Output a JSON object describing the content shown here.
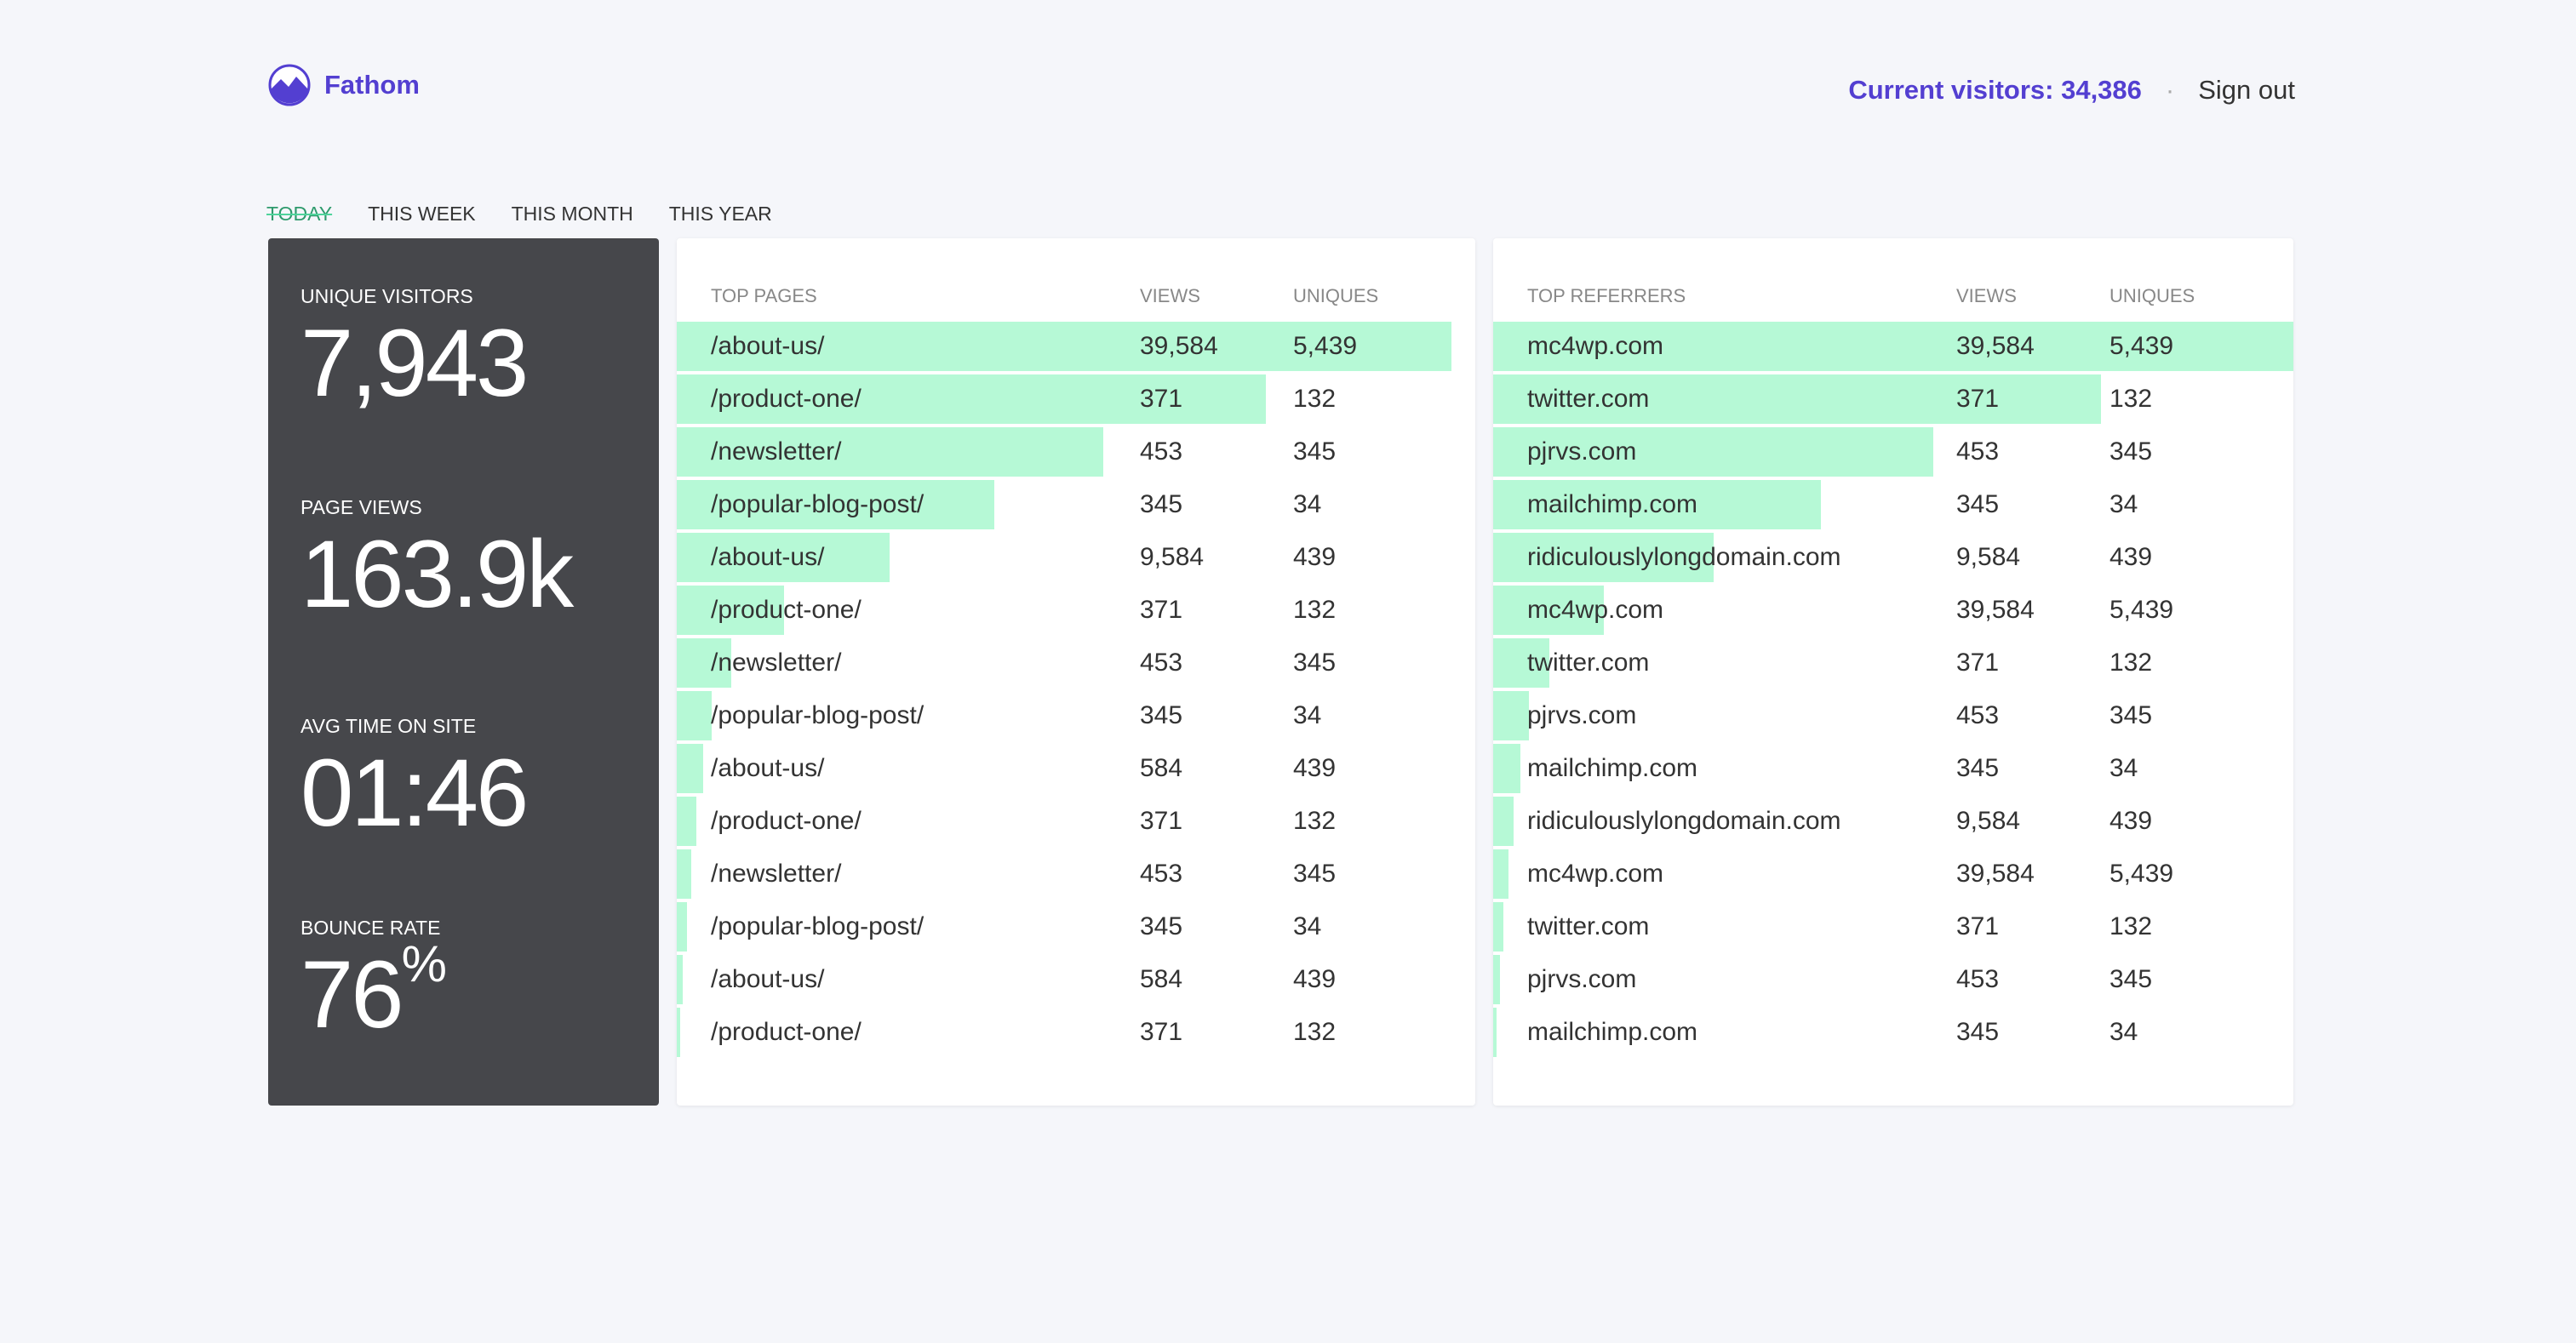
{
  "header": {
    "brand": "Fathom",
    "current_visitors": "Current visitors: 34,386",
    "separator": "·",
    "sign_out": "Sign out"
  },
  "tabs": [
    "TODAY",
    "THIS WEEK",
    "THIS MONTH",
    "THIS YEAR"
  ],
  "stats": [
    {
      "label": "UNIQUE VISITORS",
      "value": "7,943"
    },
    {
      "label": "PAGE VIEWS",
      "value": "163.9k"
    },
    {
      "label": "AVG TIME ON SITE",
      "value": "01:46"
    },
    {
      "label": "BOUNCE RATE",
      "value": "76",
      "unit": "%"
    }
  ],
  "pages": {
    "columns": [
      "TOP PAGES",
      "VIEWS",
      "UNIQUES"
    ],
    "rows": [
      [
        "/about-us/",
        "39,584",
        "5,439"
      ],
      [
        "/product-one/",
        "371",
        "132"
      ],
      [
        "/newsletter/",
        "453",
        "345"
      ],
      [
        "/popular-blog-post/",
        "345",
        "34"
      ],
      [
        "/about-us/",
        "9,584",
        "439"
      ],
      [
        "/product-one/",
        "371",
        "132"
      ],
      [
        "/newsletter/",
        "453",
        "345"
      ],
      [
        "/popular-blog-post/",
        "345",
        "34"
      ],
      [
        "/about-us/",
        "584",
        "439"
      ],
      [
        "/product-one/",
        "371",
        "132"
      ],
      [
        "/newsletter/",
        "453",
        "345"
      ],
      [
        "/popular-blog-post/",
        "345",
        "34"
      ],
      [
        "/about-us/",
        "584",
        "439"
      ],
      [
        "/product-one/",
        "371",
        "132"
      ]
    ]
  },
  "referrers": {
    "columns": [
      "TOP REFERRERS",
      "VIEWS",
      "UNIQUES"
    ],
    "rows": [
      [
        "mc4wp.com",
        "39,584",
        "5,439"
      ],
      [
        "twitter.com",
        "371",
        "132"
      ],
      [
        "pjrvs.com",
        "453",
        "345"
      ],
      [
        "mailchimp.com",
        "345",
        "34"
      ],
      [
        "ridiculouslylongdomain.com",
        "9,584",
        "439"
      ],
      [
        "mc4wp.com",
        "39,584",
        "5,439"
      ],
      [
        "twitter.com",
        "371",
        "132"
      ],
      [
        "pjrvs.com",
        "453",
        "345"
      ],
      [
        "mailchimp.com",
        "345",
        "34"
      ],
      [
        "ridiculouslylongdomain.com",
        "9,584",
        "439"
      ],
      [
        "mc4wp.com",
        "39,584",
        "5,439"
      ],
      [
        "twitter.com",
        "371",
        "132"
      ],
      [
        "pjrvs.com",
        "453",
        "345"
      ],
      [
        "mailchimp.com",
        "345",
        "34"
      ]
    ]
  }
}
